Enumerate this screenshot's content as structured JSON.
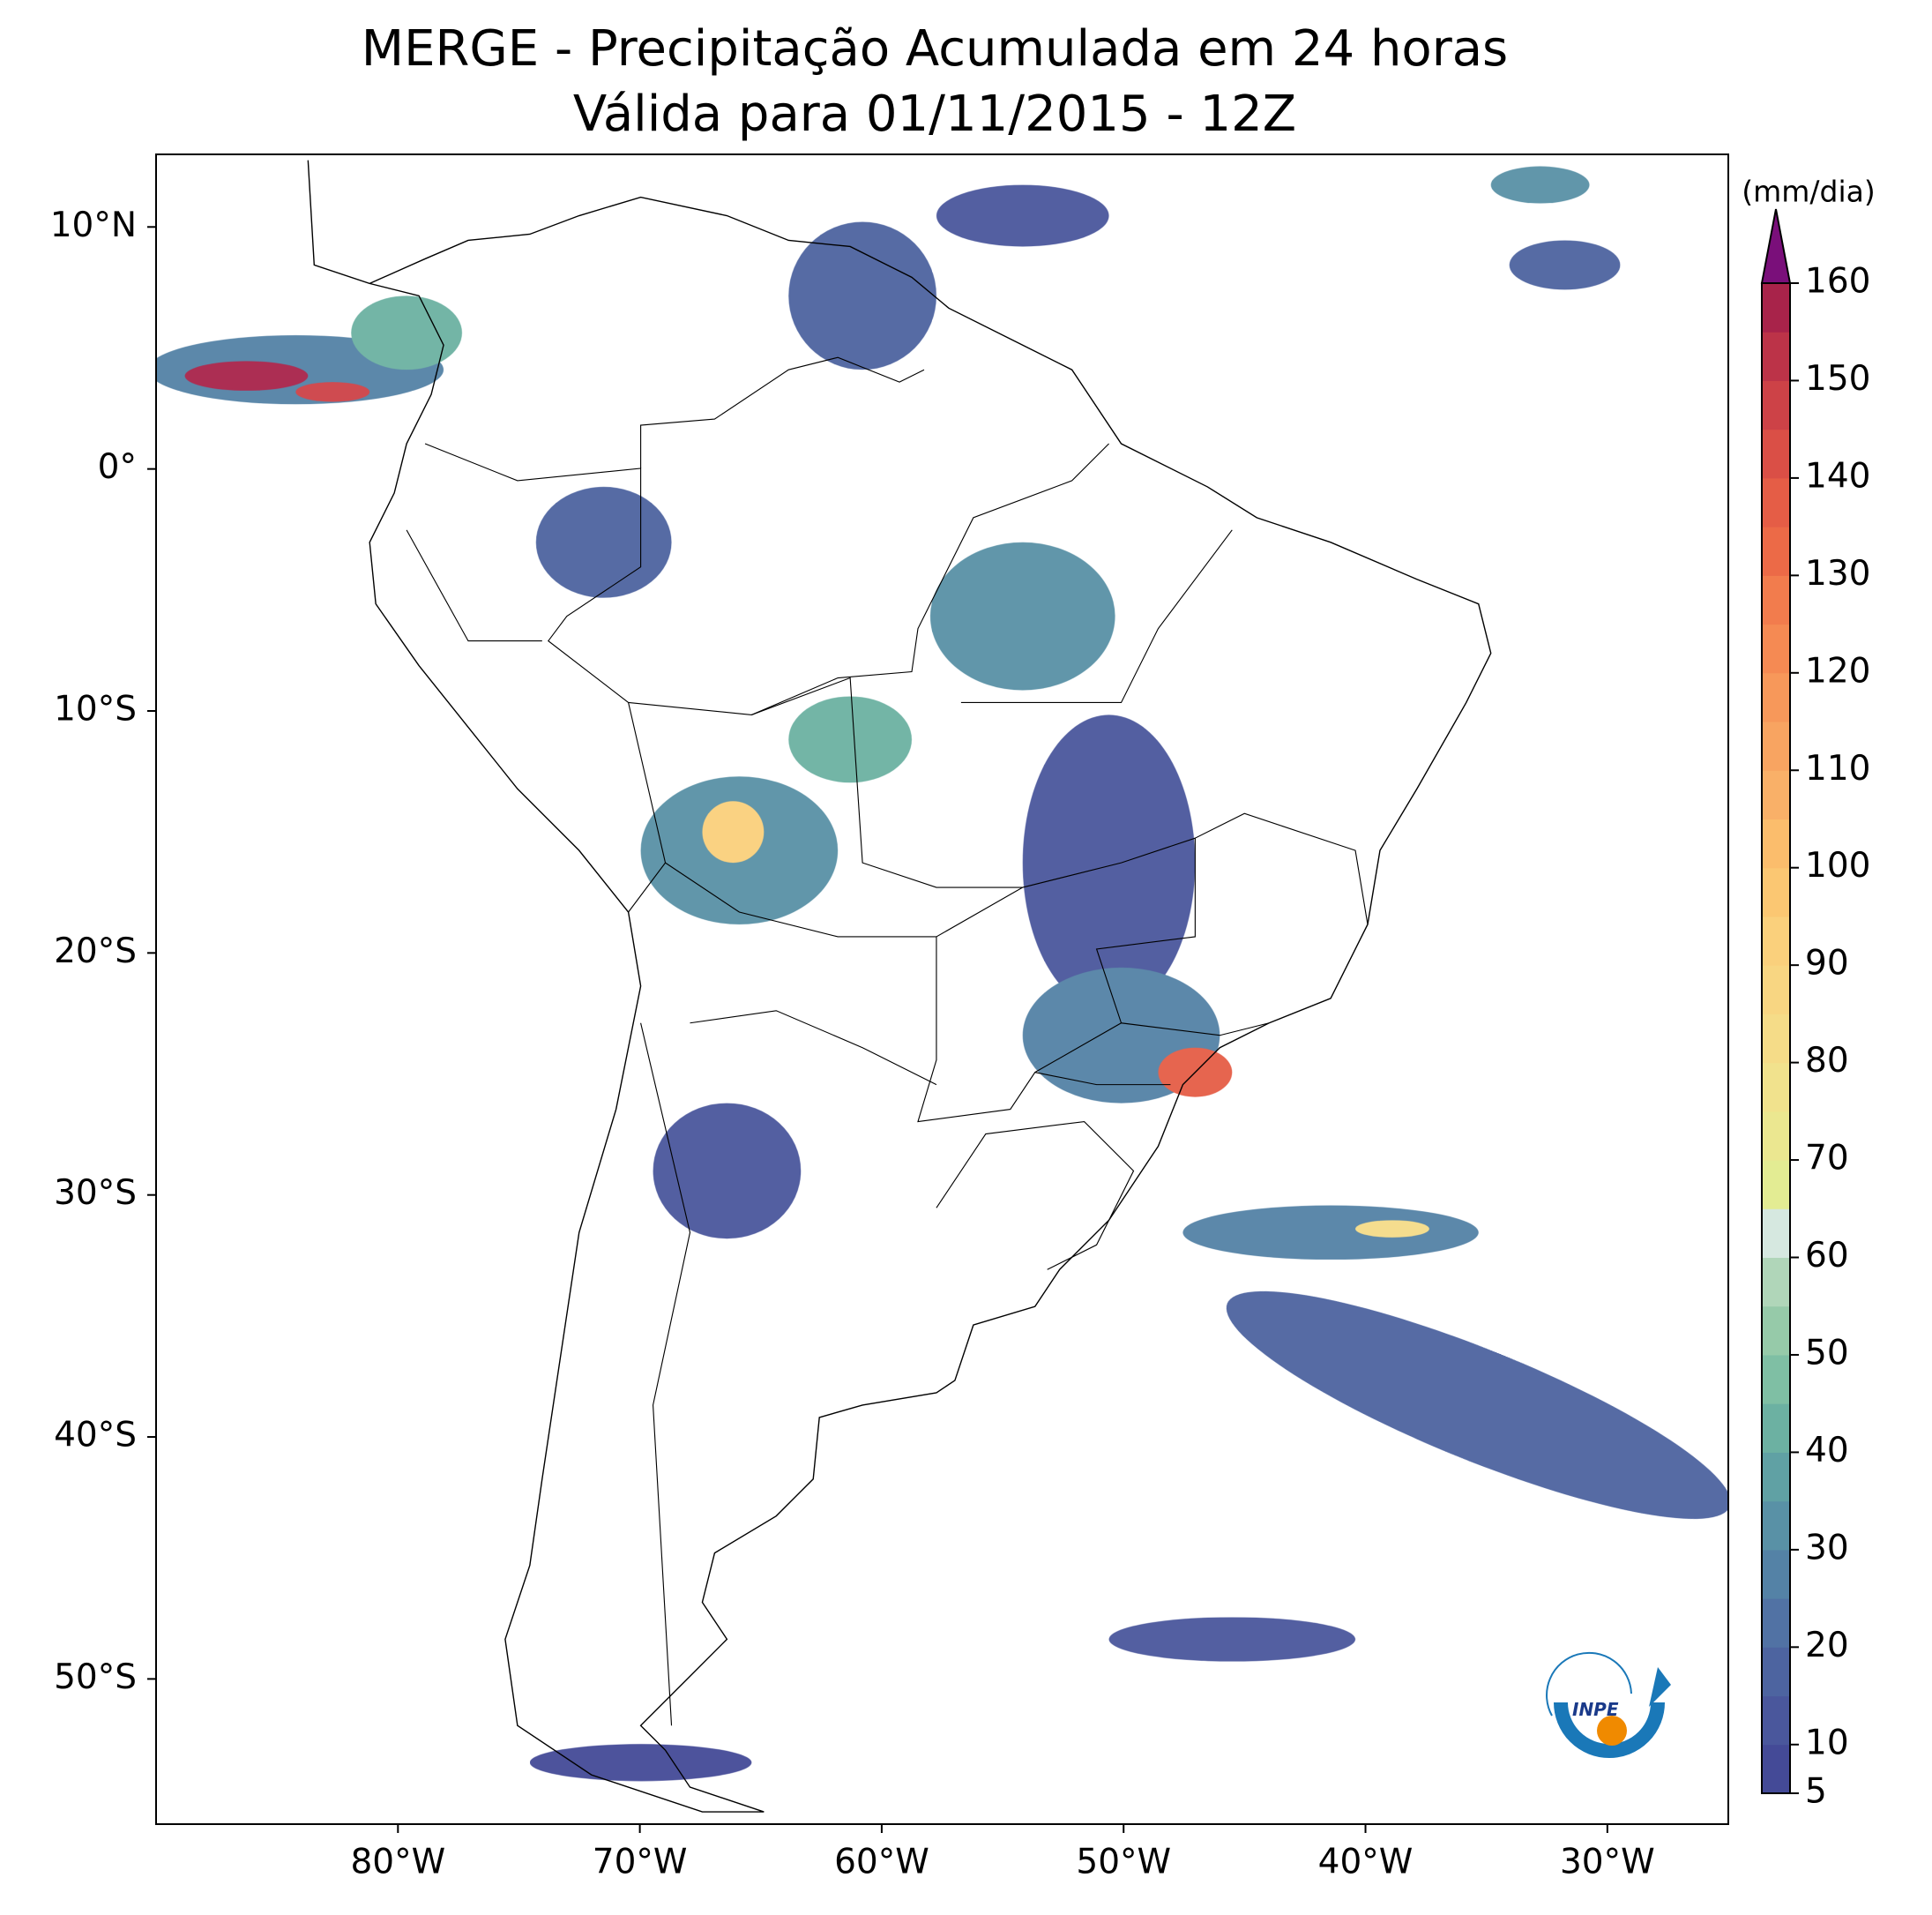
{
  "chart_data": {
    "type": "map",
    "title": "MERGE - Precipitação Acumulada em 24 horas",
    "subtitle": "Válida para 01/11/2015 - 12Z",
    "xlim": [
      -90,
      -25
    ],
    "ylim": [
      -56,
      13
    ],
    "xticks": [
      {
        "value": -80,
        "label": "80°W"
      },
      {
        "value": -70,
        "label": "70°W"
      },
      {
        "value": -60,
        "label": "60°W"
      },
      {
        "value": -50,
        "label": "50°W"
      },
      {
        "value": -40,
        "label": "40°W"
      },
      {
        "value": -30,
        "label": "30°W"
      }
    ],
    "yticks": [
      {
        "value": 10,
        "label": "10°N"
      },
      {
        "value": 0,
        "label": "0°"
      },
      {
        "value": -10,
        "label": "10°S"
      },
      {
        "value": -20,
        "label": "20°S"
      },
      {
        "value": -30,
        "label": "30°S"
      },
      {
        "value": -40,
        "label": "40°S"
      },
      {
        "value": -50,
        "label": "50°S"
      }
    ],
    "colorbar": {
      "label": "(mm/dia)",
      "lim": [
        5,
        160
      ],
      "ticks": [
        5,
        10,
        20,
        30,
        40,
        50,
        60,
        70,
        80,
        90,
        100,
        110,
        120,
        130,
        140,
        150,
        160
      ],
      "levels": [
        5,
        10,
        15,
        20,
        25,
        30,
        35,
        40,
        45,
        50,
        55,
        60,
        65,
        70,
        75,
        80,
        85,
        90,
        95,
        100,
        105,
        110,
        115,
        120,
        125,
        130,
        135,
        140,
        145,
        150,
        155,
        160
      ],
      "colors": [
        "#444a97",
        "#4a579c",
        "#4d64a0",
        "#5172a4",
        "#5482a6",
        "#5991a6",
        "#60a1a4",
        "#6cb1a2",
        "#7fbfa4",
        "#96caa9",
        "#b0d6b9",
        "#d6e8e0",
        "#e3ec93",
        "#ebe790",
        "#f1e28d",
        "#f5dc88",
        "#f8d682",
        "#fad07c",
        "#fbc772",
        "#fbbd6c",
        "#f9b068",
        "#f8a461",
        "#f7985a",
        "#f58a53",
        "#f27c4d",
        "#ec6a47",
        "#e55d46",
        "#da4f46",
        "#cd4247",
        "#bc3348",
        "#a8234a"
      ],
      "extend_color": "#7a0f7a"
    },
    "logo_text": "INPE"
  }
}
